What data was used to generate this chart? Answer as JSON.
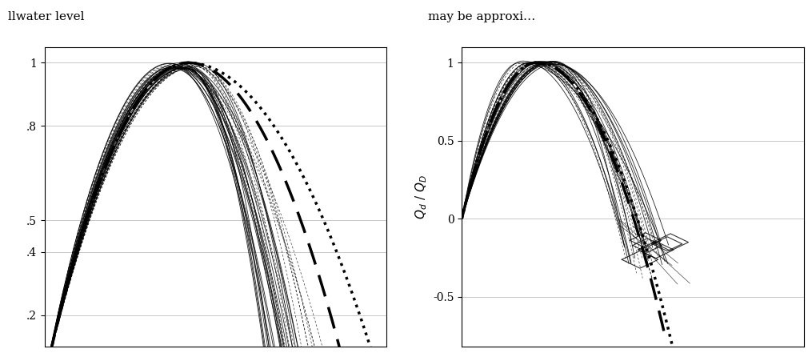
{
  "left_yticks": [
    0.2,
    0.4,
    0.5,
    0.8,
    1.0
  ],
  "left_yticklabels": [
    ".2",
    ".4",
    ".5",
    ".8",
    "1"
  ],
  "left_ylim": [
    0.1,
    1.05
  ],
  "left_xlim": [
    0.0,
    1.05
  ],
  "right_yticks": [
    1,
    0.5,
    0,
    -0.5
  ],
  "right_ylim": [
    -0.82,
    1.1
  ],
  "right_xlim": [
    0.0,
    1.05
  ],
  "right_ylabel": "$Q_d$ / $Q_D$",
  "header_left": "llwater level",
  "header_right": "may be approxi…",
  "line_color": "black",
  "bg_color": "white"
}
